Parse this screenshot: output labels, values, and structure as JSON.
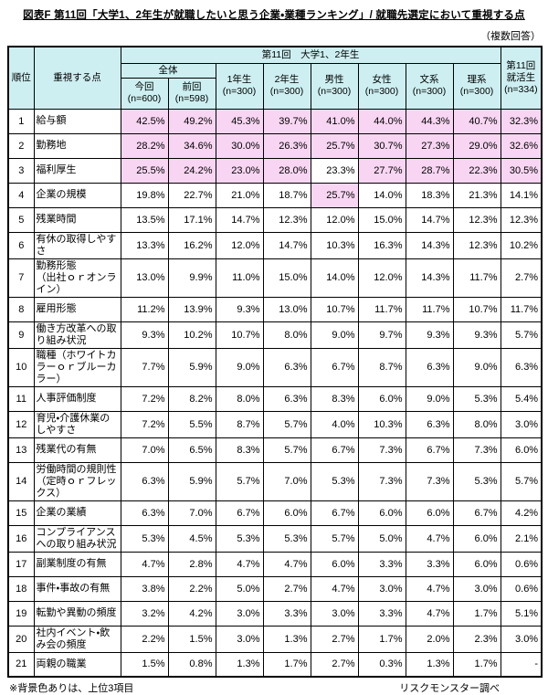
{
  "title": "図表F 第11回「大学1、2年生が就職したいと思う企業・業種ランキング」/ 就職先選定において重視する点",
  "multiple_answer_note": "（複数回答）",
  "header": {
    "rank": "順位",
    "point": "重視する点",
    "group": "第11回　大学1、2年生",
    "overall": "全体",
    "columns": [
      [
        "今回",
        "(n=600)"
      ],
      [
        "前回",
        "(n=598)"
      ],
      [
        "1年生",
        "(n=300)"
      ],
      [
        "2年生",
        "(n=300)"
      ],
      [
        "男性",
        "(n=300)"
      ],
      [
        "女性",
        "(n=300)"
      ],
      [
        "文系",
        "(n=300)"
      ],
      [
        "理系",
        "(n=300)"
      ]
    ],
    "last_column": [
      "第11回",
      "就活生",
      "(n=334)"
    ]
  },
  "chart_data": {
    "type": "table",
    "title": "第11回 大学1、2年生が就職先選定において重視する点（複数回答、%）",
    "unit": "%",
    "columns": [
      "全体 今回 (n=600)",
      "全体 前回 (n=598)",
      "1年生 (n=300)",
      "2年生 (n=300)",
      "男性 (n=300)",
      "女性 (n=300)",
      "文系 (n=300)",
      "理系 (n=300)",
      "第11回就活生 (n=334)"
    ],
    "highlight_meaning": "背景色（ピンク）は各列の上位3項目",
    "rows": [
      {
        "rank": 1,
        "label": "給与額",
        "values": [
          42.5,
          49.2,
          45.3,
          39.7,
          41.0,
          44.0,
          44.3,
          40.7,
          32.3
        ],
        "highlight": [
          1,
          1,
          1,
          1,
          1,
          1,
          1,
          1,
          1
        ]
      },
      {
        "rank": 2,
        "label": "勤務地",
        "values": [
          28.2,
          34.6,
          30.0,
          26.3,
          25.7,
          30.7,
          27.3,
          29.0,
          32.6
        ],
        "highlight": [
          1,
          1,
          1,
          1,
          1,
          1,
          1,
          1,
          1
        ]
      },
      {
        "rank": 3,
        "label": "福利厚生",
        "values": [
          25.5,
          24.2,
          23.0,
          28.0,
          23.3,
          27.7,
          28.7,
          22.3,
          30.5
        ],
        "highlight": [
          1,
          1,
          1,
          1,
          0,
          1,
          1,
          1,
          1
        ]
      },
      {
        "rank": 4,
        "label": "企業の規模",
        "values": [
          19.8,
          22.7,
          21.0,
          18.7,
          25.7,
          14.0,
          18.3,
          21.3,
          14.1
        ],
        "highlight": [
          0,
          0,
          0,
          0,
          1,
          0,
          0,
          0,
          0
        ]
      },
      {
        "rank": 5,
        "label": "残業時間",
        "values": [
          13.5,
          17.1,
          14.7,
          12.3,
          12.0,
          15.0,
          14.7,
          12.3,
          12.3
        ]
      },
      {
        "rank": 6,
        "label": "有休の取得しやすさ",
        "values": [
          13.3,
          16.2,
          12.0,
          14.7,
          10.3,
          16.3,
          14.3,
          12.3,
          10.2
        ]
      },
      {
        "rank": 7,
        "label": "勤務形態\n（出社ｏｒオンライン）",
        "values": [
          13.0,
          9.9,
          11.0,
          15.0,
          14.0,
          12.0,
          14.3,
          11.7,
          2.7
        ]
      },
      {
        "rank": 8,
        "label": "雇用形態",
        "values": [
          11.2,
          13.9,
          9.3,
          13.0,
          10.7,
          11.7,
          11.7,
          10.7,
          11.7
        ]
      },
      {
        "rank": 9,
        "label": "働き方改革への取り組み状況",
        "values": [
          9.3,
          10.2,
          10.7,
          8.0,
          9.0,
          9.7,
          9.3,
          9.3,
          5.7
        ]
      },
      {
        "rank": 10,
        "label": "職種（ホワイトカラーｏｒブルーカラー）",
        "values": [
          7.7,
          5.9,
          9.0,
          6.3,
          6.7,
          8.7,
          6.3,
          9.0,
          6.3
        ]
      },
      {
        "rank": 11,
        "label": "人事評価制度",
        "values": [
          7.2,
          8.2,
          8.0,
          6.3,
          8.3,
          6.0,
          9.0,
          5.3,
          5.4
        ]
      },
      {
        "rank": 12,
        "label": "育児・介護休業のしやすさ",
        "values": [
          7.2,
          5.5,
          8.7,
          5.7,
          4.0,
          10.3,
          6.3,
          8.0,
          3.0
        ]
      },
      {
        "rank": 13,
        "label": "残業代の有無",
        "values": [
          7.0,
          6.5,
          8.3,
          5.7,
          6.7,
          7.3,
          6.7,
          7.3,
          6.0
        ]
      },
      {
        "rank": 14,
        "label": "労働時間の規則性\n（定時ｏｒフレックス）",
        "values": [
          6.3,
          5.9,
          5.7,
          7.0,
          5.3,
          7.3,
          7.3,
          5.3,
          5.7
        ]
      },
      {
        "rank": 15,
        "label": "企業の業績",
        "values": [
          6.3,
          7.0,
          6.7,
          6.0,
          6.7,
          6.0,
          6.0,
          6.7,
          4.2
        ]
      },
      {
        "rank": 16,
        "label": "コンプライアンスへの取り組み状況",
        "values": [
          5.3,
          4.5,
          5.3,
          5.3,
          5.7,
          5.0,
          4.7,
          6.0,
          2.1
        ]
      },
      {
        "rank": 17,
        "label": "副業制度の有無",
        "values": [
          4.7,
          2.8,
          4.7,
          4.7,
          6.0,
          3.3,
          3.3,
          6.0,
          0.6
        ]
      },
      {
        "rank": 18,
        "label": "事件・事故の有無",
        "values": [
          3.8,
          2.2,
          5.0,
          2.7,
          4.7,
          3.0,
          4.7,
          3.0,
          0.6
        ]
      },
      {
        "rank": 19,
        "label": "転勤や異動の頻度",
        "values": [
          3.2,
          4.2,
          3.0,
          3.3,
          3.0,
          3.3,
          4.7,
          1.7,
          5.1
        ]
      },
      {
        "rank": 20,
        "label": "社内イベント・飲み会の頻度",
        "values": [
          2.2,
          1.5,
          3.0,
          1.3,
          2.7,
          1.7,
          2.0,
          2.3,
          3.0
        ]
      },
      {
        "rank": 21,
        "label": "両親の職業",
        "values": [
          1.5,
          0.8,
          1.3,
          1.7,
          2.7,
          0.3,
          1.3,
          1.7,
          null
        ]
      }
    ]
  },
  "footnote": "※背景色ありは、上位3項目",
  "source": "リスクモンスター調べ",
  "colors": {
    "header_bg": "#cdeff1",
    "highlight_bg": "#f8d6f3",
    "border": "#000000"
  }
}
